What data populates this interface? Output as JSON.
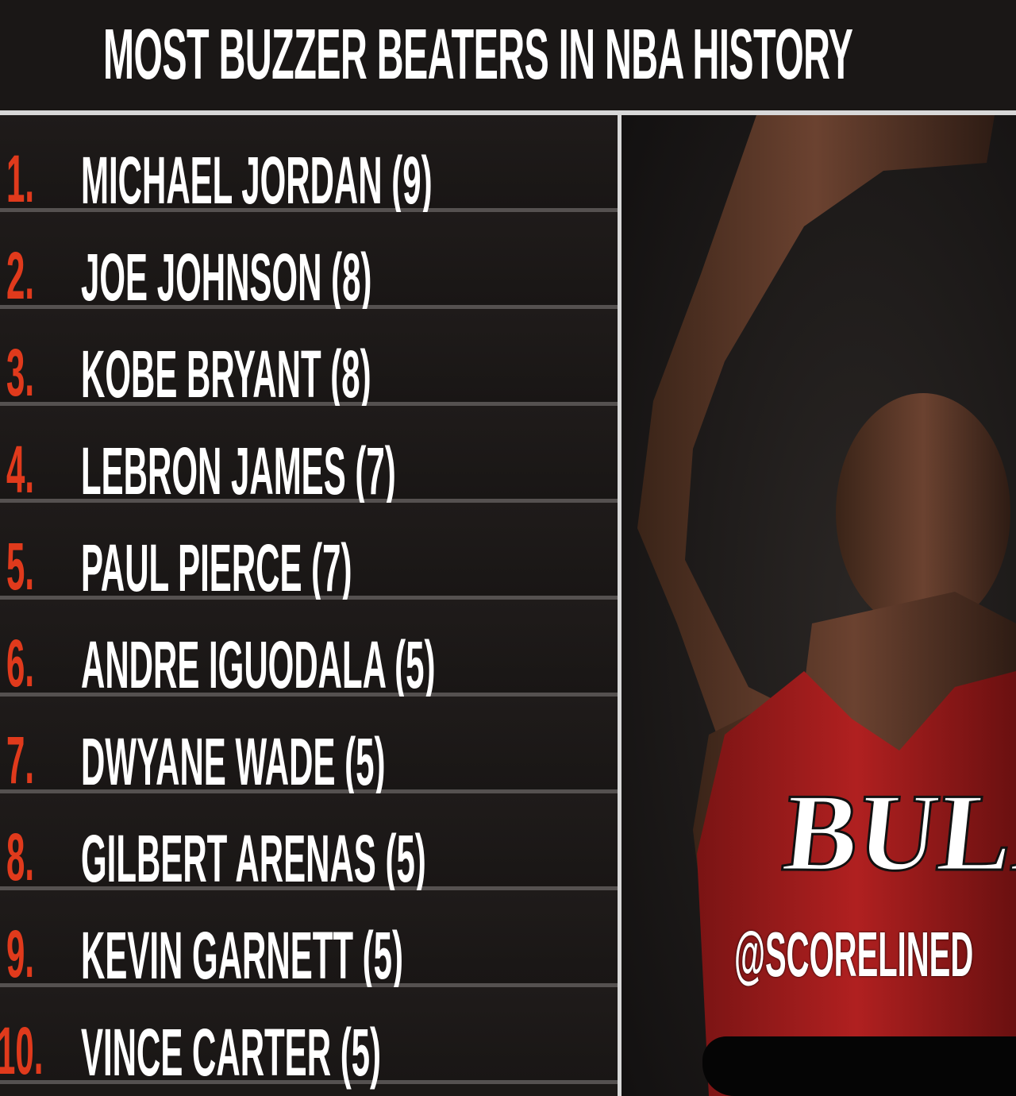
{
  "title": "MOST BUZZER BEATERS IN NBA HISTORY",
  "colors": {
    "rank": "#e03a1c",
    "background": "#1c1917",
    "text": "#ffffff"
  },
  "list": [
    {
      "rank": "1.",
      "name": "MICHAEL JORDAN (9)"
    },
    {
      "rank": "2.",
      "name": "JOE JOHNSON (8)"
    },
    {
      "rank": "3.",
      "name": "KOBE BRYANT (8)"
    },
    {
      "rank": "4.",
      "name": "LEBRON JAMES (7)"
    },
    {
      "rank": "5.",
      "name": "PAUL PIERCE (7)"
    },
    {
      "rank": "6.",
      "name": "ANDRE IGUODALA (5)"
    },
    {
      "rank": "7.",
      "name": "DWYANE WADE (5)"
    },
    {
      "rank": "8.",
      "name": "GILBERT ARENAS (5)"
    },
    {
      "rank": "9.",
      "name": "KEVIN GARNETT (5)"
    },
    {
      "rank": "10.",
      "name": "VINCE CARTER (5)"
    }
  ],
  "photo": {
    "jersey_text": "BULL"
  },
  "watermark": "@SCORELINED"
}
